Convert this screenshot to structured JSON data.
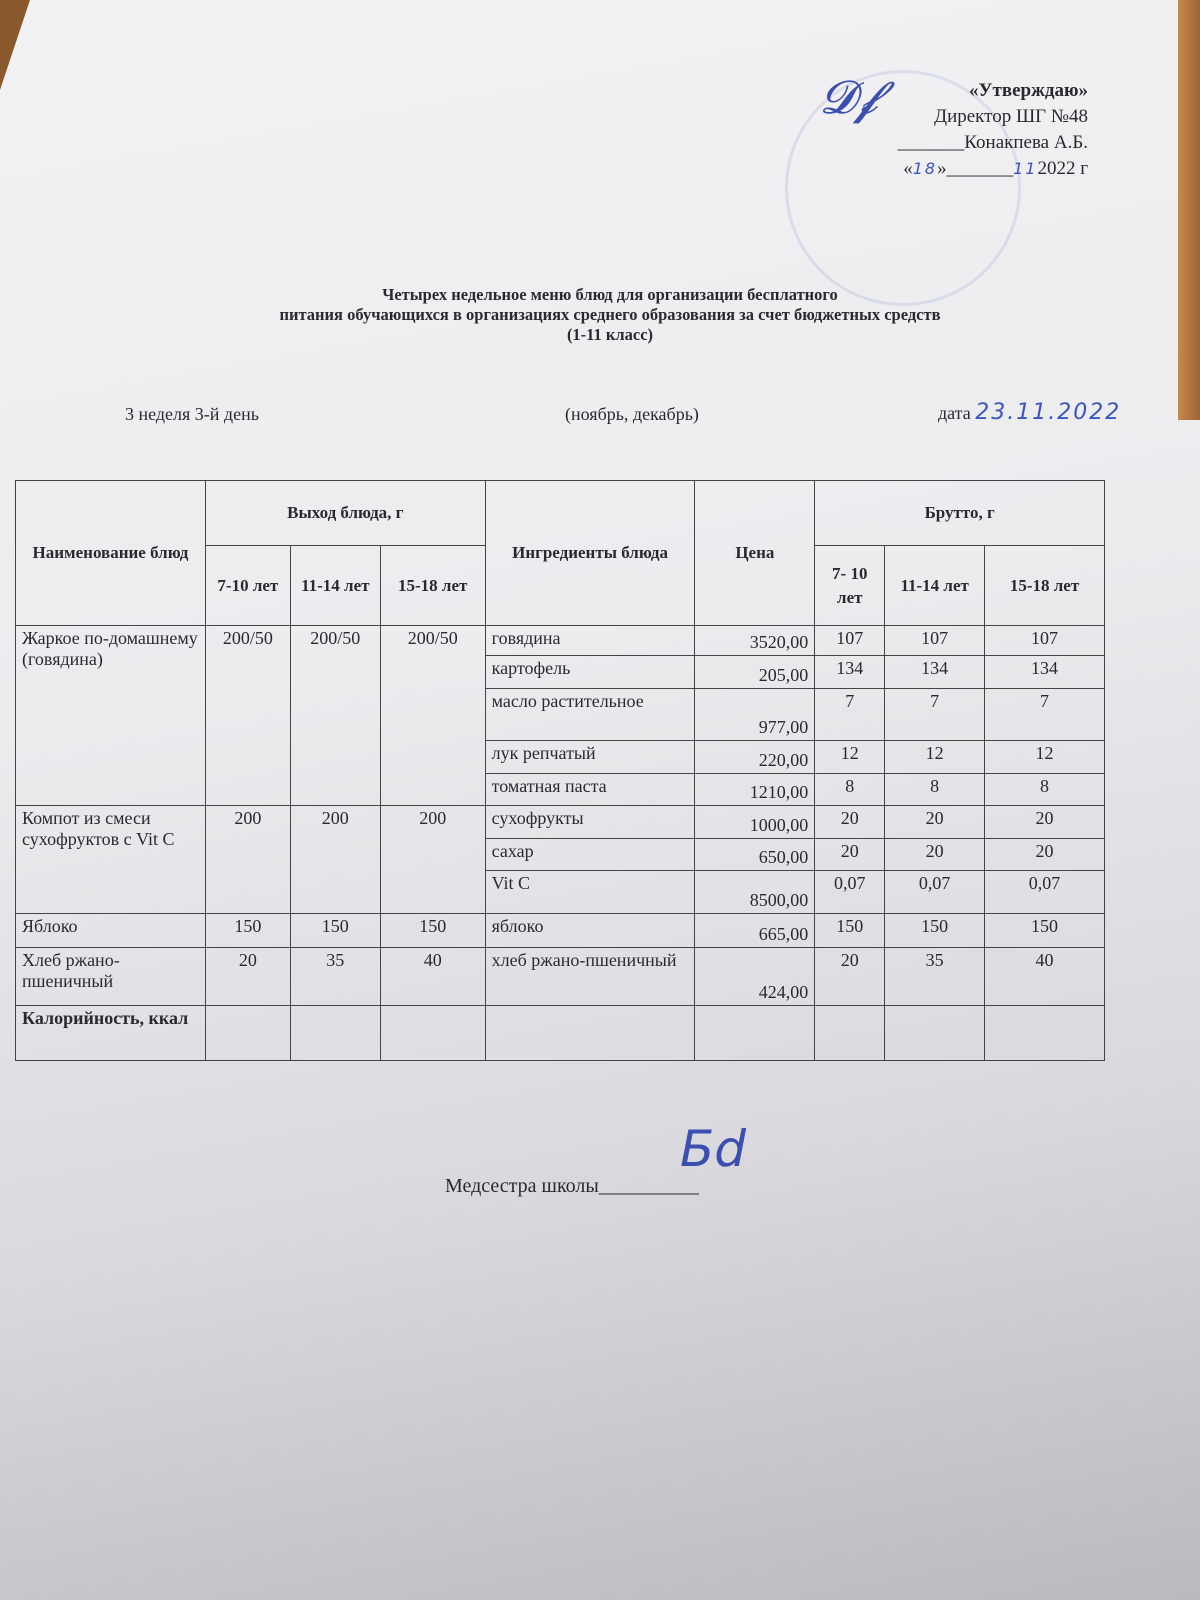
{
  "approval": {
    "title": "«Утверждаю»",
    "position": "Директор ШГ №48",
    "name_line": "_______Конакпева А.Б.",
    "date_open": "«",
    "day": "18",
    "date_mid": "»_______",
    "month": "11",
    "year": "2022 г"
  },
  "heading": {
    "line1": "Четырех недельное меню блюд для организации бесплатного",
    "line2": "питания обучающихся в организациях среднего образования за счет бюджетных средств",
    "line3": "(1-11 класс)"
  },
  "meta": {
    "week_day": "3 неделя 3-й день",
    "period": "(ноябрь, декабрь)",
    "date_label": "дата",
    "date_value": "23.11.2022"
  },
  "table": {
    "headers": {
      "name": "Наименование блюд",
      "output": "Выход блюда, г",
      "ingredients": "Ингредиенты блюда",
      "price": "Цена",
      "gross": "Брутто, г",
      "age1": "7-10 лет",
      "age2": "11-14 лет",
      "age3": "15-18 лет",
      "gross_age1": "7- 10 лет"
    },
    "dishes": [
      {
        "name": "Жаркое по-домашнему (говядина)",
        "out": [
          "200/50",
          "200/50",
          "200/50"
        ],
        "items": [
          {
            "ing": "говядина",
            "price": "3520,00",
            "g": [
              "107",
              "107",
              "107"
            ]
          },
          {
            "ing": "картофель",
            "price": "205,00",
            "g": [
              "134",
              "134",
              "134"
            ]
          },
          {
            "ing": "масло растительное",
            "price": "977,00",
            "g": [
              "7",
              "7",
              "7"
            ]
          },
          {
            "ing": "лук репчатый",
            "price": "220,00",
            "g": [
              "12",
              "12",
              "12"
            ]
          },
          {
            "ing": "томатная паста",
            "price": "1210,00",
            "g": [
              "8",
              "8",
              "8"
            ]
          }
        ]
      },
      {
        "name": "Компот из смеси сухофруктов с Vit C",
        "out": [
          "200",
          "200",
          "200"
        ],
        "items": [
          {
            "ing": "сухофрукты",
            "price": "1000,00",
            "g": [
              "20",
              "20",
              "20"
            ]
          },
          {
            "ing": "сахар",
            "price": "650,00",
            "g": [
              "20",
              "20",
              "20"
            ]
          },
          {
            "ing": "Vit C",
            "price": "8500,00",
            "g": [
              "0,07",
              "0,07",
              "0,07"
            ]
          }
        ]
      },
      {
        "name": "Яблоко",
        "out": [
          "150",
          "150",
          "150"
        ],
        "items": [
          {
            "ing": "яблоко",
            "price": "665,00",
            "g": [
              "150",
              "150",
              "150"
            ]
          }
        ]
      },
      {
        "name": "Хлеб ржано-пшеничный",
        "out": [
          "20",
          "35",
          "40"
        ],
        "items": [
          {
            "ing": "хлеб ржано-пшеничный",
            "price": "424,00",
            "g": [
              "20",
              "35",
              "40"
            ]
          }
        ]
      }
    ],
    "calories_label": "Калорийность, ккал"
  },
  "nurse": {
    "label": "Медсестра школы",
    "line": "__________"
  }
}
